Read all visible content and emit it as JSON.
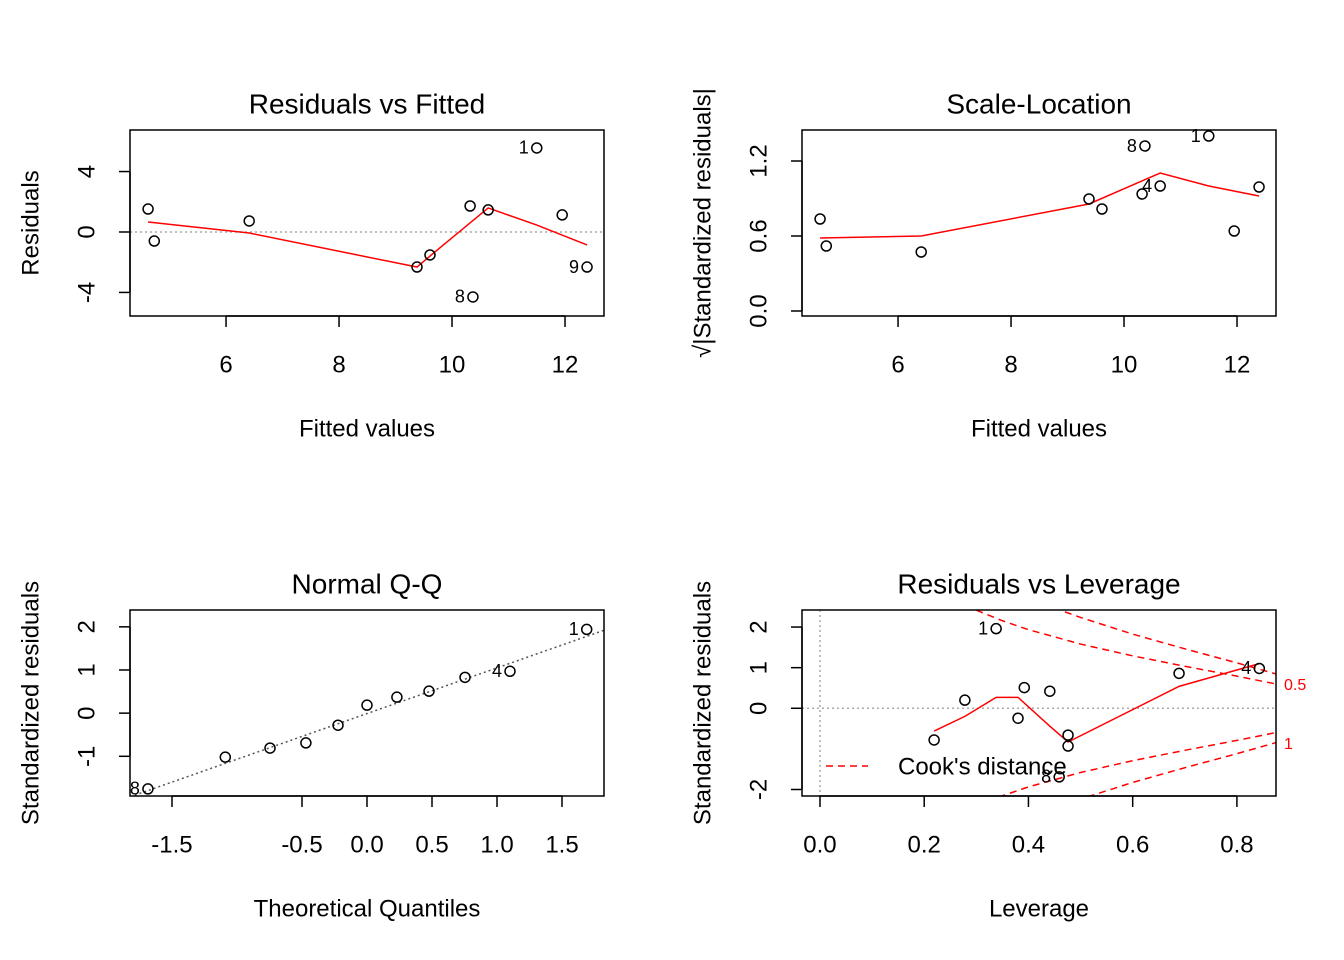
{
  "chart_data": [
    {
      "type": "scatter",
      "title": "Residuals vs Fitted",
      "x_label": "Fitted values",
      "y_label": "Residuals",
      "x": [
        4.62,
        4.73,
        6.41,
        9.38,
        9.61,
        10.32,
        10.64,
        11.5,
        10.37,
        11.95,
        12.39
      ],
      "values": [
        1.52,
        -0.6,
        0.73,
        -2.32,
        -1.52,
        1.72,
        1.46,
        5.56,
        -4.3,
        1.13,
        -2.32
      ],
      "point_labels": [
        null,
        null,
        null,
        null,
        null,
        null,
        null,
        "1",
        "8",
        null,
        "9"
      ],
      "smooth": {
        "color": "#ff0000",
        "x": [
          4.62,
          6.41,
          9.38,
          9.61,
          10.64,
          11.5,
          12.39
        ],
        "values": [
          0.66,
          -0.07,
          -2.32,
          -1.59,
          1.59,
          0.46,
          -0.86
        ]
      },
      "hline": 0,
      "xlim": [
        4.3,
        12.69
      ],
      "xticks": [
        6,
        8,
        10,
        12
      ],
      "ylim": [
        -5.56,
        6.75
      ],
      "yticks": [
        -4,
        0,
        4
      ]
    },
    {
      "type": "scatter",
      "title": "Scale-Location",
      "x_label": "Fitted values",
      "y_label": "√|Standardized residuals|",
      "x": [
        4.62,
        4.73,
        6.41,
        9.38,
        9.61,
        10.32,
        10.64,
        11.5,
        10.37,
        11.95,
        12.39
      ],
      "values": [
        0.736,
        0.52,
        0.472,
        0.896,
        0.816,
        0.936,
        1.0,
        1.4,
        1.32,
        0.64,
        0.992
      ],
      "point_labels": [
        null,
        null,
        null,
        null,
        null,
        null,
        "4",
        "1",
        "8",
        null,
        null
      ],
      "smooth": {
        "color": "#ff0000",
        "x": [
          4.62,
          6.41,
          9.38,
          10.64,
          11.5,
          12.39
        ],
        "values": [
          0.584,
          0.6,
          0.856,
          1.104,
          1.0,
          0.92
        ]
      },
      "xlim": [
        4.3,
        12.69
      ],
      "xticks": [
        6,
        8,
        10,
        12
      ],
      "ylim": [
        -0.04,
        1.448
      ],
      "yticks": [
        {
          "value": 0,
          "label": "0.0"
        },
        0.6,
        1.2
      ]
    },
    {
      "type": "scatter",
      "title": "Normal Q-Q",
      "x_label": "Theoretical Quantiles",
      "y_label": "Standardized residuals",
      "x": [
        -1.685,
        -1.09,
        -0.746,
        -0.47,
        -0.223,
        0,
        0.23,
        0.477,
        0.754,
        1.1,
        1.69
      ],
      "values": [
        -1.755,
        -1.02,
        -0.81,
        -0.69,
        -0.28,
        0.185,
        0.37,
        0.51,
        0.83,
        0.97,
        1.94
      ],
      "point_labels": [
        "8",
        null,
        null,
        null,
        null,
        null,
        null,
        null,
        null,
        "4",
        "1"
      ],
      "qq_line": {
        "color": "#555555",
        "x": [
          -1.823,
          1.823
        ],
        "values": [
          -1.94,
          1.92
        ]
      },
      "xlim": [
        -1.823,
        1.823
      ],
      "xticks": [
        -1.5,
        -0.5,
        {
          "value": 0,
          "label": "0.0"
        },
        0.5,
        {
          "value": 1,
          "label": "1.0"
        },
        1.5
      ],
      "ylim": [
        -1.92,
        2.39
      ],
      "yticks": [
        -1,
        0,
        1,
        2
      ]
    },
    {
      "type": "scatter",
      "title": "Residuals vs Leverage",
      "x_label": "Leverage",
      "y_label": "Standardized residuals",
      "x": [
        0.219,
        0.278,
        0.338,
        0.38,
        0.392,
        0.441,
        0.459,
        0.476,
        0.476,
        0.689,
        0.843
      ],
      "values": [
        -0.78,
        0.2,
        1.96,
        -0.245,
        0.51,
        0.42,
        -1.69,
        -0.66,
        -0.93,
        0.86,
        0.98
      ],
      "point_labels": [
        null,
        null,
        "1",
        null,
        null,
        null,
        "8",
        null,
        null,
        null,
        "4"
      ],
      "smooth": {
        "color": "#ff0000",
        "x": [
          0.219,
          0.278,
          0.338,
          0.38,
          0.441,
          0.476,
          0.689,
          0.843
        ],
        "values": [
          -0.56,
          -0.2,
          0.27,
          0.27,
          -0.44,
          -0.83,
          0.54,
          1.1
        ]
      },
      "hline": 0,
      "vline": 0,
      "cooks_distance": {
        "name": "Cook's distance",
        "color": "#ff0000",
        "levels": [
          {
            "level": 0.5,
            "x": [
              0.3,
              0.35,
              0.4,
              0.5,
              0.6,
              0.7,
              0.8,
              0.875
            ],
            "upper": [
              2.415,
              2.155,
              1.936,
              1.581,
              1.291,
              1.035,
              0.791,
              0.598
            ],
            "lower": [
              -2.415,
              -2.155,
              -1.936,
              -1.581,
              -1.291,
              -1.035,
              -0.791,
              -0.598
            ]
          },
          {
            "level": 1,
            "x": [
              0.47,
              0.5,
              0.6,
              0.7,
              0.8,
              0.875
            ],
            "upper": [
              2.374,
              2.236,
              1.826,
              1.464,
              1.118,
              0.845
            ],
            "lower": [
              -2.374,
              -2.236,
              -1.826,
              -1.464,
              -1.118,
              -0.845
            ]
          }
        ]
      },
      "xlim": [
        -0.0345,
        0.875
      ],
      "xticks": [
        {
          "value": 0,
          "label": "0.0"
        },
        0.2,
        0.4,
        0.6,
        0.8
      ],
      "ylim": [
        -2.16,
        2.42
      ],
      "yticks": [
        -2,
        0,
        1,
        2
      ]
    }
  ]
}
